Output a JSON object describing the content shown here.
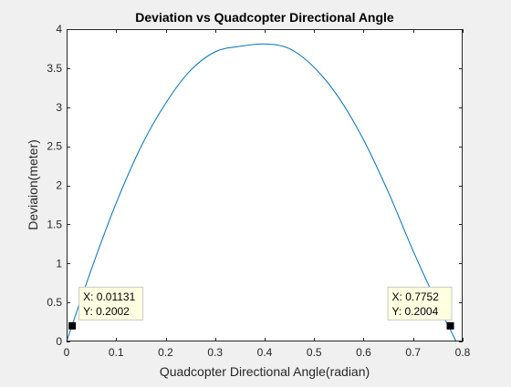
{
  "chart_data": {
    "type": "line",
    "title": "Deviation vs Quadcopter Directional Angle",
    "xlabel": "Quadcopter Directional Angle(radian)",
    "ylabel": "Deviaion(meter)",
    "xlim": [
      0,
      0.8
    ],
    "ylim": [
      0,
      4
    ],
    "xticks": [
      0,
      0.1,
      0.2,
      0.3,
      0.4,
      0.5,
      0.6,
      0.7,
      0.8
    ],
    "xtick_labels": [
      "0",
      "0.1",
      "0.2",
      "0.3",
      "0.4",
      "0.5",
      "0.6",
      "0.7",
      "0.8"
    ],
    "yticks": [
      0,
      0.5,
      1,
      1.5,
      2,
      2.5,
      3,
      3.5,
      4
    ],
    "ytick_labels": [
      "0",
      "0.5",
      "1",
      "1.5",
      "2",
      "2.5",
      "3",
      "3.5",
      "4"
    ],
    "grid": false,
    "series": [
      {
        "color": "#0072bd",
        "x": [
          0.0,
          0.05,
          0.1,
          0.15,
          0.2,
          0.25,
          0.3,
          0.35,
          0.4,
          0.45,
          0.5,
          0.55,
          0.6,
          0.65,
          0.7,
          0.75,
          0.787
        ],
        "y": [
          0.0,
          0.924,
          1.77,
          2.49,
          3.05,
          3.47,
          3.71,
          3.78,
          3.81,
          3.75,
          3.51,
          3.12,
          2.58,
          1.91,
          1.16,
          0.47,
          0.0
        ]
      }
    ],
    "datatips": [
      {
        "x": 0.01131,
        "y": 0.2002,
        "x_label": "X: 0.01131",
        "y_label": "Y: 0.2002"
      },
      {
        "x": 0.7752,
        "y": 0.2004,
        "x_label": "X: 0.7752",
        "y_label": "Y: 0.2004"
      }
    ]
  }
}
